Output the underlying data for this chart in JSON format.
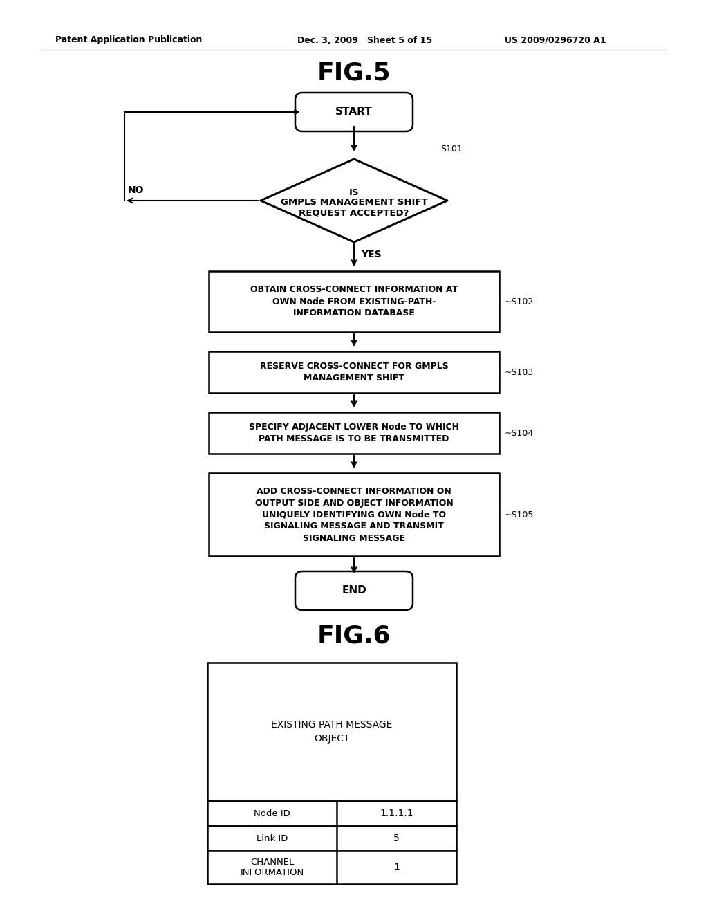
{
  "bg_color": "#ffffff",
  "text_color": "#000000",
  "header_left": "Patent Application Publication",
  "header_mid": "Dec. 3, 2009   Sheet 5 of 15",
  "header_right": "US 2009/0296720 A1",
  "fig5_title": "FIG.5",
  "fig6_title": "FIG.6",
  "start_text": "START",
  "end_text": "END",
  "diamond_line1": "IS",
  "diamond_line2": "GMPLS MANAGEMENT SHIFT",
  "diamond_line3": "REQUEST ACCEPTED?",
  "diamond_label": "S101",
  "no_label": "NO",
  "yes_label": "YES",
  "box1_text": "OBTAIN CROSS-CONNECT INFORMATION AT\nOWN Node FROM EXISTING-PATH-\nINFORMATION DATABASE",
  "box1_label": "~S102",
  "box2_text": "RESERVE CROSS-CONNECT FOR GMPLS\nMANAGEMENT SHIFT",
  "box2_label": "~S103",
  "box3_text": "SPECIFY ADJACENT LOWER Node TO WHICH\nPATH MESSAGE IS TO BE TRANSMITTED",
  "box3_label": "~S104",
  "box4_text": "ADD CROSS-CONNECT INFORMATION ON\nOUTPUT SIDE AND OBJECT INFORMATION\nUNIQUELY IDENTIFYING OWN Node TO\nSIGNALING MESSAGE AND TRANSMIT\nSIGNALING MESSAGE",
  "box4_label": "~S105",
  "table_top_text": "EXISTING PATH MESSAGE\nOBJECT",
  "table_rows": [
    [
      "Node ID",
      "1.1.1.1"
    ],
    [
      "Link ID",
      "5"
    ],
    [
      "CHANNEL\nINFORMATION",
      "1"
    ]
  ]
}
